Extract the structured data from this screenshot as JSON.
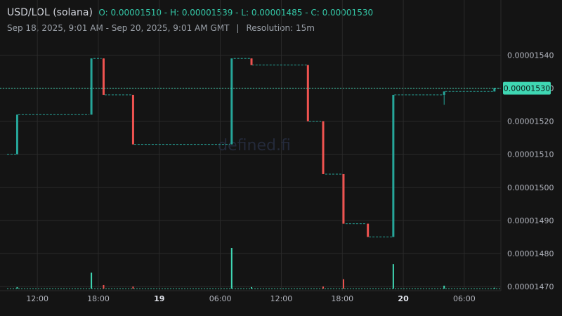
{
  "header": {
    "symbol": "USD/LOL (solana)",
    "ohlc": "O: 0.00001510 - H: 0.00001539 - L: 0.00001485 - C: 0.00001530",
    "range": "Sep 18, 2025, 9:01 AM - Sep 20, 2025, 9:01 AM GMT",
    "separator": "|",
    "resolution": "Resolution: 15m"
  },
  "watermark": "defined.fi",
  "colors": {
    "up": "#26a69a",
    "down": "#ef5350",
    "up_volume": "#3fd7b3",
    "down_volume": "#ef5350",
    "price_line": "#3fd7b3",
    "grid": "#2a2a2a",
    "background": "#141414"
  },
  "chart_data": {
    "type": "candlestick",
    "xlabel": "",
    "ylabel": "",
    "ylim": [
      1.47e-05,
      1.545e-05
    ],
    "x_ticks": [
      {
        "t": 11.983,
        "label": "12:00",
        "bold": false
      },
      {
        "t": 17.983,
        "label": "18:00",
        "bold": false
      },
      {
        "t": 23.983,
        "label": "19",
        "bold": true
      },
      {
        "t": 29.983,
        "label": "06:00",
        "bold": false
      },
      {
        "t": 35.983,
        "label": "12:00",
        "bold": false
      },
      {
        "t": 41.983,
        "label": "18:00",
        "bold": false
      },
      {
        "t": 47.983,
        "label": "20",
        "bold": true
      },
      {
        "t": 53.983,
        "label": "06:00",
        "bold": false
      }
    ],
    "x_range_hours": [
      9.0,
      57.583
    ],
    "y_ticks": [
      1.54e-05,
      1.53e-05,
      1.52e-05,
      1.51e-05,
      1.5e-05,
      1.49e-05,
      1.48e-05,
      1.47e-05
    ],
    "y_tick_labels": [
      "0.00001540",
      "0.00001530",
      "0.00001520",
      "0.00001510",
      "0.00001500",
      "0.00001490",
      "0.00001480",
      "0.00001470"
    ],
    "last_price": 1.53e-05,
    "last_price_label": "0.00001530",
    "flat_segments": [
      {
        "t0": 9.0,
        "t1": 9.9,
        "price": 1.51e-05
      },
      {
        "t0": 10.1,
        "t1": 17.1,
        "price": 1.522e-05
      },
      {
        "t0": 17.5,
        "t1": 18.3,
        "price": 1.539e-05
      },
      {
        "t0": 18.6,
        "t1": 21.3,
        "price": 1.528e-05
      },
      {
        "t0": 21.5,
        "t1": 30.9,
        "price": 1.513e-05
      },
      {
        "t0": 31.3,
        "t1": 33.0,
        "price": 1.539e-05
      },
      {
        "t0": 33.1,
        "t1": 38.5,
        "price": 1.537e-05
      },
      {
        "t0": 38.7,
        "t1": 39.9,
        "price": 1.52e-05
      },
      {
        "t0": 40.3,
        "t1": 42.0,
        "price": 1.504e-05
      },
      {
        "t0": 42.3,
        "t1": 44.3,
        "price": 1.489e-05
      },
      {
        "t0": 44.6,
        "t1": 46.9,
        "price": 1.485e-05
      },
      {
        "t0": 47.1,
        "t1": 51.9,
        "price": 1.528e-05
      },
      {
        "t0": 52.1,
        "t1": 56.9,
        "price": 1.529e-05
      },
      {
        "t0": 56.9,
        "t1": 57.583,
        "price": 1.53e-05
      }
    ],
    "candles": [
      {
        "t": 10.0,
        "o": 1.51e-05,
        "h": 1.522e-05,
        "l": 1.51e-05,
        "c": 1.522e-05
      },
      {
        "t": 17.3,
        "o": 1.522e-05,
        "h": 1.539e-05,
        "l": 1.522e-05,
        "c": 1.539e-05
      },
      {
        "t": 18.5,
        "o": 1.539e-05,
        "h": 1.539e-05,
        "l": 1.528e-05,
        "c": 1.528e-05
      },
      {
        "t": 21.4,
        "o": 1.528e-05,
        "h": 1.528e-05,
        "l": 1.513e-05,
        "c": 1.513e-05
      },
      {
        "t": 31.1,
        "o": 1.513e-05,
        "h": 1.539e-05,
        "l": 1.513e-05,
        "c": 1.539e-05
      },
      {
        "t": 33.05,
        "o": 1.539e-05,
        "h": 1.539e-05,
        "l": 1.537e-05,
        "c": 1.537e-05
      },
      {
        "t": 38.6,
        "o": 1.537e-05,
        "h": 1.537e-05,
        "l": 1.52e-05,
        "c": 1.52e-05
      },
      {
        "t": 40.1,
        "o": 1.52e-05,
        "h": 1.52e-05,
        "l": 1.504e-05,
        "c": 1.504e-05
      },
      {
        "t": 42.1,
        "o": 1.504e-05,
        "h": 1.504e-05,
        "l": 1.489e-05,
        "c": 1.489e-05
      },
      {
        "t": 44.5,
        "o": 1.489e-05,
        "h": 1.489e-05,
        "l": 1.485e-05,
        "c": 1.485e-05
      },
      {
        "t": 47.0,
        "o": 1.485e-05,
        "h": 1.528e-05,
        "l": 1.485e-05,
        "c": 1.528e-05
      },
      {
        "t": 52.0,
        "o": 1.528e-05,
        "h": 1.529e-05,
        "l": 1.525e-05,
        "c": 1.529e-05
      },
      {
        "t": 56.95,
        "o": 1.529e-05,
        "h": 1.53e-05,
        "l": 1.529e-05,
        "c": 1.53e-05
      }
    ],
    "volume": [
      {
        "t": 10.0,
        "v": 0.5,
        "dir": "up"
      },
      {
        "t": 17.3,
        "v": 5.4,
        "dir": "up"
      },
      {
        "t": 18.5,
        "v": 1.2,
        "dir": "down"
      },
      {
        "t": 21.4,
        "v": 0.7,
        "dir": "down"
      },
      {
        "t": 31.1,
        "v": 13.8,
        "dir": "up"
      },
      {
        "t": 33.05,
        "v": 0.5,
        "dir": "up"
      },
      {
        "t": 40.1,
        "v": 0.7,
        "dir": "down"
      },
      {
        "t": 42.1,
        "v": 3.2,
        "dir": "down"
      },
      {
        "t": 47.0,
        "v": 8.3,
        "dir": "up"
      },
      {
        "t": 52.0,
        "v": 1.0,
        "dir": "up"
      },
      {
        "t": 56.95,
        "v": 0.3,
        "dir": "up"
      }
    ]
  }
}
